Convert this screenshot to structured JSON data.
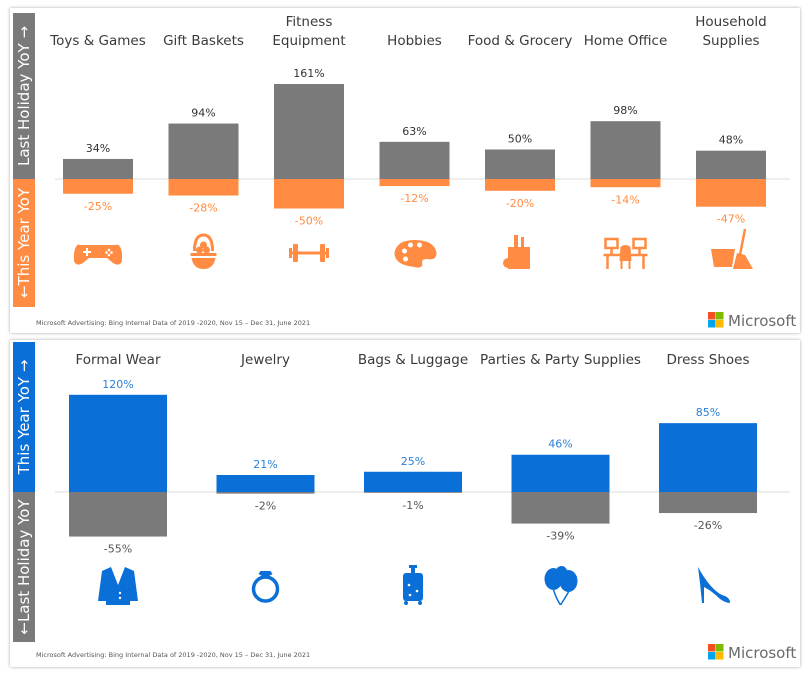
{
  "footnote": "Microsoft Advertising: Bing Internal Data of 2019 -2020, Nov 15 – Dec 31, June 2021",
  "logo_text": "Microsoft",
  "logo_colors": [
    "#f25022",
    "#7fba00",
    "#00a4ef",
    "#ffb900"
  ],
  "chart_data": [
    {
      "type": "bar",
      "up_label": "Last Holiday YoY →",
      "down_label": "←This Year YoY",
      "colors": {
        "up": "#7a7a7a",
        "down": "#ff8c42",
        "up_text": "#333333",
        "down_text": "#ff8c42",
        "icon": "#ff8c42"
      },
      "categories": [
        {
          "label": [
            "Toys & Games"
          ],
          "icon": "game-controller-icon"
        },
        {
          "label": [
            "Gift Baskets"
          ],
          "icon": "basket-icon"
        },
        {
          "label": [
            "Fitness",
            "Equipment"
          ],
          "icon": "dumbbell-icon"
        },
        {
          "label": [
            "Hobbies"
          ],
          "icon": "paint-palette-icon"
        },
        {
          "label": [
            "Food & Grocery"
          ],
          "icon": "grocery-bag-icon"
        },
        {
          "label": [
            "Home Office"
          ],
          "icon": "desk-icon"
        },
        {
          "label": [
            "Household",
            "Supplies"
          ],
          "icon": "bucket-broom-icon"
        }
      ],
      "series": [
        {
          "name": "Last Holiday YoY",
          "values": [
            34,
            94,
            161,
            63,
            50,
            98,
            48
          ],
          "labels": [
            "34%",
            "94%",
            "161%",
            "63%",
            "50%",
            "98%",
            "48%"
          ]
        },
        {
          "name": "This Year YoY",
          "values": [
            -25,
            -28,
            -50,
            -12,
            -20,
            -14,
            -47
          ],
          "labels": [
            "-25%",
            "-28%",
            "-50%",
            "-12%",
            "-20%",
            "-14%",
            "-47%"
          ]
        }
      ]
    },
    {
      "type": "bar",
      "up_label": "This Year YoY →",
      "down_label": "←Last Holiday YoY",
      "colors": {
        "up": "#0a6fd6",
        "down": "#7a7a7a",
        "up_text": "#2b7fd9",
        "down_text": "#555555",
        "icon": "#0a6fd6"
      },
      "categories": [
        {
          "label": [
            "Formal Wear"
          ],
          "icon": "suit-jacket-icon"
        },
        {
          "label": [
            "Jewelry"
          ],
          "icon": "ring-icon"
        },
        {
          "label": [
            "Bags & Luggage"
          ],
          "icon": "suitcase-icon"
        },
        {
          "label": [
            "Parties & Party Supplies"
          ],
          "icon": "balloons-icon"
        },
        {
          "label": [
            "Dress Shoes"
          ],
          "icon": "high-heel-icon"
        }
      ],
      "series": [
        {
          "name": "This Year YoY",
          "values": [
            120,
            21,
            25,
            46,
            85
          ],
          "labels": [
            "120%",
            "21%",
            "25%",
            "46%",
            "85%"
          ]
        },
        {
          "name": "Last Holiday YoY",
          "values": [
            -55,
            -2,
            -1,
            -39,
            -26
          ],
          "labels": [
            "-55%",
            "-2%",
            "-1%",
            "-39%",
            "-26%"
          ]
        }
      ]
    }
  ]
}
